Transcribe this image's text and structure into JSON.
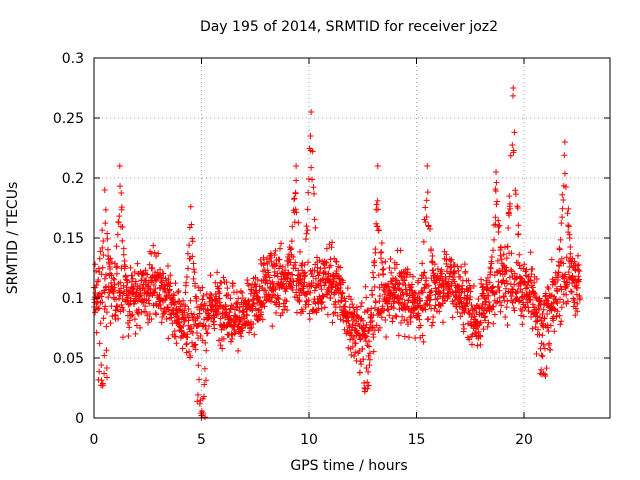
{
  "chart_data": {
    "type": "scatter",
    "title": "Day 195 of 2014, SRMTID for receiver joz2",
    "xlabel": "GPS time / hours",
    "ylabel": "SRMTID / TECUs",
    "xlim": [
      0,
      24
    ],
    "ylim": [
      0,
      0.3
    ],
    "x_ticks": [
      0,
      5,
      10,
      15,
      20
    ],
    "x_tick_labels": [
      "0",
      "5",
      "10",
      "15",
      "20"
    ],
    "y_ticks": [
      0,
      0.05,
      0.1,
      0.15,
      0.2,
      0.25,
      0.3
    ],
    "y_tick_labels": [
      "0",
      "0.05",
      "0.1",
      "0.15",
      "0.2",
      "0.25",
      "0.3"
    ],
    "grid": true,
    "marker": "+",
    "series": [
      {
        "name": "SRMTID",
        "color": "#ff0000",
        "points_described": "approximately 2400 samples between 0 and 22.6 hours",
        "x_range": [
          0,
          22.6
        ],
        "typical_y_range": [
          0.05,
          0.15
        ],
        "peaks": [
          {
            "x": 0.5,
            "y": 0.19
          },
          {
            "x": 1.2,
            "y": 0.21
          },
          {
            "x": 4.5,
            "y": 0.176
          },
          {
            "x": 9.4,
            "y": 0.21
          },
          {
            "x": 10.1,
            "y": 0.255
          },
          {
            "x": 13.2,
            "y": 0.21
          },
          {
            "x": 15.5,
            "y": 0.21
          },
          {
            "x": 18.7,
            "y": 0.205
          },
          {
            "x": 19.5,
            "y": 0.275
          },
          {
            "x": 21.9,
            "y": 0.23
          }
        ],
        "minima": [
          {
            "x": 0.4,
            "y": 0.027
          },
          {
            "x": 5.0,
            "y": 0.0
          },
          {
            "x": 12.6,
            "y": 0.022
          },
          {
            "x": 21.0,
            "y": 0.035
          }
        ]
      }
    ]
  }
}
